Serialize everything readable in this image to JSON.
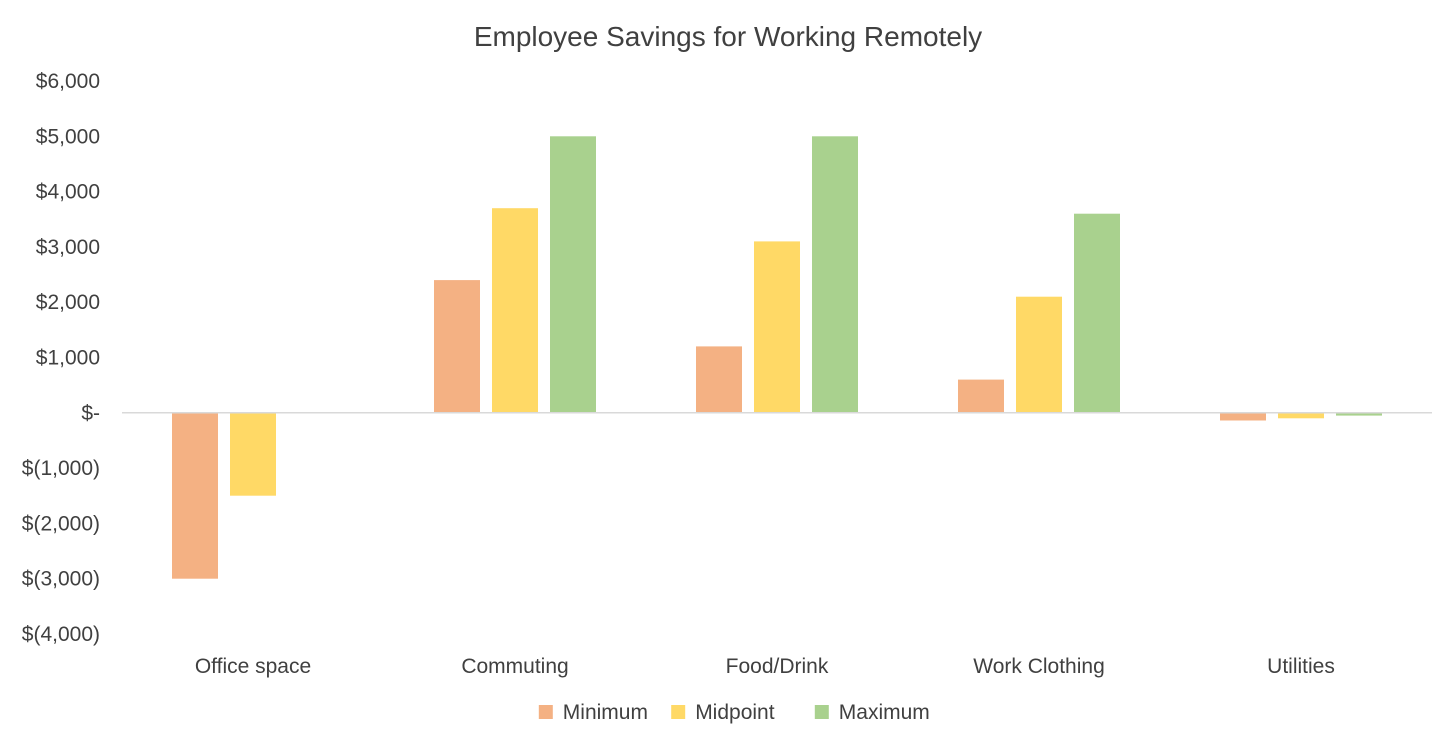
{
  "chart_data": {
    "type": "bar",
    "title": "Employee Savings for Working Remotely",
    "categories": [
      "Office space",
      "Commuting",
      "Food/Drink",
      "Work Clothing",
      "Utilities"
    ],
    "series": [
      {
        "name": "Minimum",
        "color": "#f4b183",
        "values": [
          -3000,
          2400,
          1200,
          600,
          -140
        ]
      },
      {
        "name": "Midpoint",
        "color": "#ffd966",
        "values": [
          -1500,
          3700,
          3100,
          2100,
          -100
        ]
      },
      {
        "name": "Maximum",
        "color": "#a9d18e",
        "values": [
          0,
          5000,
          5000,
          3600,
          -50
        ]
      }
    ],
    "ylim": [
      -4000,
      6000
    ],
    "yticks": [
      6000,
      5000,
      4000,
      3000,
      2000,
      1000,
      0,
      -1000,
      -2000,
      -3000,
      -4000
    ],
    "ytick_labels": [
      "$6,000",
      "$5,000",
      "$4,000",
      "$3,000",
      "$2,000",
      "$1,000",
      "$-",
      "$(1,000)",
      "$(2,000)",
      "$(3,000)",
      "$(4,000)"
    ],
    "grid": false,
    "legend_position": "bottom",
    "axis_color": "#d9d9d9"
  }
}
